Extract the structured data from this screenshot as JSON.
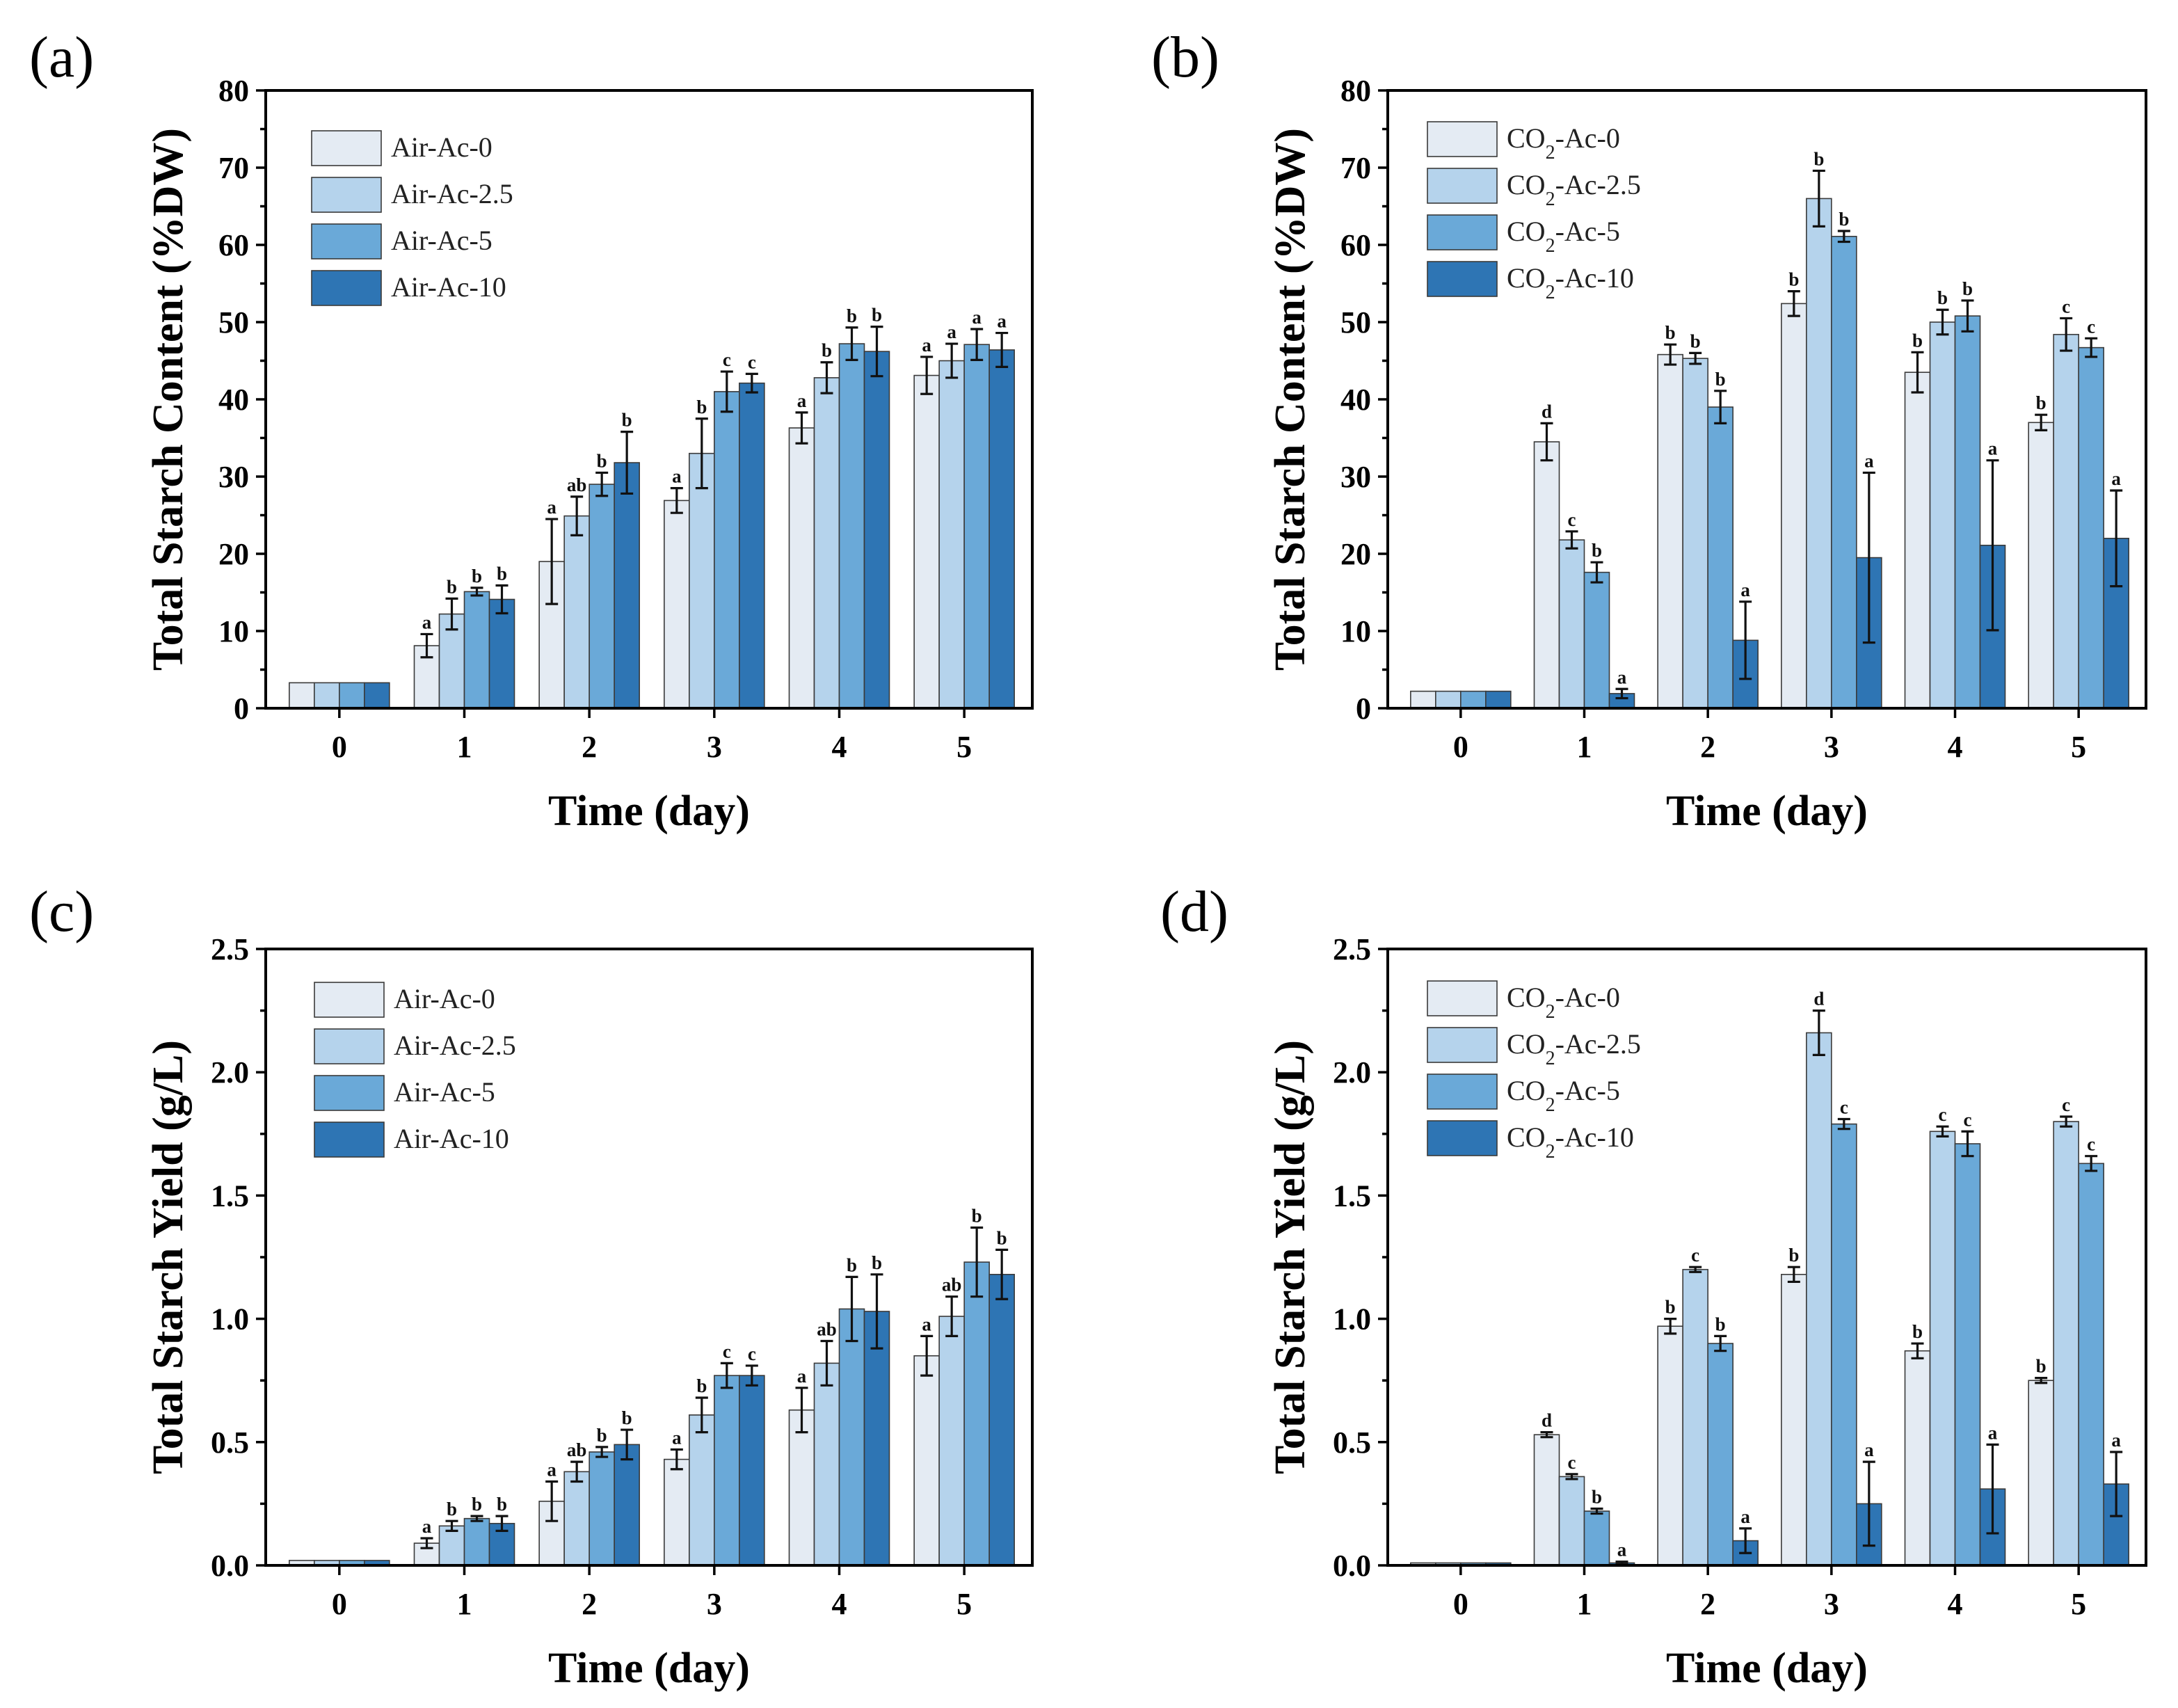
{
  "colors": [
    "#e4ebf3",
    "#b5d3ec",
    "#6aa9d8",
    "#2e75b4"
  ],
  "chart_data": [
    {
      "type": "bar",
      "panel_label": "(a)",
      "xlabel": "Time (day)",
      "ylabel": "Total Starch Content (%DW)",
      "categories": [
        "0",
        "1",
        "2",
        "3",
        "4",
        "5"
      ],
      "ylim": [
        0,
        80
      ],
      "yticks": [
        "0",
        "10",
        "20",
        "30",
        "40",
        "50",
        "60",
        "70",
        "80"
      ],
      "legend_position": "top-left",
      "series": [
        {
          "name": "Air-Ac-0",
          "values": [
            3.3,
            8.1,
            19.0,
            26.9,
            36.3,
            43.1
          ],
          "errors": [
            0,
            1.5,
            5.5,
            1.6,
            2.0,
            2.4
          ],
          "labels": [
            "",
            "a",
            "a",
            "a",
            "a",
            "a"
          ]
        },
        {
          "name": "Air-Ac-2.5",
          "values": [
            3.3,
            12.2,
            24.9,
            33.0,
            42.8,
            45.0
          ],
          "errors": [
            0,
            2.0,
            2.5,
            4.5,
            2.0,
            2.2
          ],
          "labels": [
            "",
            "b",
            "ab",
            "b",
            "b",
            "a"
          ]
        },
        {
          "name": "Air-Ac-5",
          "values": [
            3.3,
            15.1,
            29.0,
            41.0,
            47.2,
            47.1
          ],
          "errors": [
            0,
            0.5,
            1.5,
            2.6,
            2.1,
            2.0
          ],
          "labels": [
            "",
            "b",
            "b",
            "c",
            "b",
            "a"
          ]
        },
        {
          "name": "Air-Ac-10",
          "values": [
            3.3,
            14.1,
            31.8,
            42.1,
            46.2,
            46.4
          ],
          "errors": [
            0,
            1.8,
            4.0,
            1.2,
            3.2,
            2.2
          ],
          "labels": [
            "",
            "b",
            "b",
            "c",
            "b",
            "a"
          ]
        }
      ]
    },
    {
      "type": "bar",
      "panel_label": "(b)",
      "xlabel": "Time (day)",
      "ylabel": "Total Starch Content (%DW)",
      "categories": [
        "0",
        "1",
        "2",
        "3",
        "4",
        "5"
      ],
      "ylim": [
        0,
        80
      ],
      "yticks": [
        "0",
        "10",
        "20",
        "30",
        "40",
        "50",
        "60",
        "70",
        "80"
      ],
      "legend_position": "top-left",
      "series": [
        {
          "name": "CO2-Ac-0",
          "values": [
            2.2,
            34.5,
            45.8,
            52.4,
            43.5,
            37.0
          ],
          "errors": [
            0,
            2.4,
            1.3,
            1.6,
            2.6,
            1.0
          ],
          "labels": [
            "",
            "d",
            "b",
            "b",
            "b",
            "b"
          ]
        },
        {
          "name": "CO2-Ac-2.5",
          "values": [
            2.2,
            21.8,
            45.3,
            66.0,
            50.0,
            48.4
          ],
          "errors": [
            0,
            1.1,
            0.7,
            3.6,
            1.6,
            2.1
          ],
          "labels": [
            "",
            "c",
            "b",
            "b",
            "b",
            "c"
          ]
        },
        {
          "name": "CO2-Ac-5",
          "values": [
            2.2,
            17.6,
            39.0,
            61.1,
            50.8,
            46.7
          ],
          "errors": [
            0,
            1.3,
            2.1,
            0.7,
            2.0,
            1.2
          ],
          "labels": [
            "",
            "b",
            "b",
            "b",
            "b",
            "c"
          ]
        },
        {
          "name": "CO2-Ac-10",
          "values": [
            2.2,
            1.9,
            8.8,
            19.5,
            21.1,
            22.0
          ],
          "errors": [
            0,
            0.6,
            5.0,
            11.0,
            11.0,
            6.2
          ],
          "labels": [
            "",
            "a",
            "a",
            "a",
            "a",
            "a"
          ]
        }
      ]
    },
    {
      "type": "bar",
      "panel_label": "(c)",
      "xlabel": "Time (day)",
      "ylabel": "Total Starch Yield (g/L)",
      "categories": [
        "0",
        "1",
        "2",
        "3",
        "4",
        "5"
      ],
      "ylim": [
        0,
        2.5
      ],
      "yticks": [
        "0.0",
        "0.5",
        "1.0",
        "1.5",
        "2.0",
        "2.5"
      ],
      "legend_position": "top-left",
      "series": [
        {
          "name": "Air-Ac-0",
          "values": [
            0.02,
            0.09,
            0.26,
            0.43,
            0.63,
            0.85
          ],
          "errors": [
            0,
            0.02,
            0.08,
            0.04,
            0.09,
            0.08
          ],
          "labels": [
            "",
            "a",
            "a",
            "a",
            "a",
            "a"
          ]
        },
        {
          "name": "Air-Ac-2.5",
          "values": [
            0.02,
            0.16,
            0.38,
            0.61,
            0.82,
            1.01
          ],
          "errors": [
            0,
            0.02,
            0.04,
            0.07,
            0.09,
            0.08
          ],
          "labels": [
            "",
            "b",
            "ab",
            "b",
            "ab",
            "ab"
          ]
        },
        {
          "name": "Air-Ac-5",
          "values": [
            0.02,
            0.19,
            0.46,
            0.77,
            1.04,
            1.23
          ],
          "errors": [
            0,
            0.01,
            0.02,
            0.05,
            0.13,
            0.14
          ],
          "labels": [
            "",
            "b",
            "b",
            "c",
            "b",
            "b"
          ]
        },
        {
          "name": "Air-Ac-10",
          "values": [
            0.02,
            0.17,
            0.49,
            0.77,
            1.03,
            1.18
          ],
          "errors": [
            0,
            0.03,
            0.06,
            0.04,
            0.15,
            0.1
          ],
          "labels": [
            "",
            "b",
            "b",
            "c",
            "b",
            "b"
          ]
        }
      ]
    },
    {
      "type": "bar",
      "panel_label": "(d)",
      "xlabel": "Time (day)",
      "ylabel": "Total Starch Yield (g/L)",
      "categories": [
        "0",
        "1",
        "2",
        "3",
        "4",
        "5"
      ],
      "ylim": [
        0,
        2.5
      ],
      "yticks": [
        "0.0",
        "0.5",
        "1.0",
        "1.5",
        "2.0",
        "2.5"
      ],
      "legend_position": "top-left",
      "series": [
        {
          "name": "CO2-Ac-0",
          "values": [
            0.01,
            0.53,
            0.97,
            1.18,
            0.87,
            0.75
          ],
          "errors": [
            0,
            0.01,
            0.03,
            0.03,
            0.03,
            0.01
          ],
          "labels": [
            "",
            "d",
            "b",
            "b",
            "b",
            "b"
          ]
        },
        {
          "name": "CO2-Ac-2.5",
          "values": [
            0.01,
            0.36,
            1.2,
            2.16,
            1.76,
            1.8
          ],
          "errors": [
            0,
            0.01,
            0.01,
            0.09,
            0.02,
            0.02
          ],
          "labels": [
            "",
            "c",
            "c",
            "d",
            "c",
            "c"
          ]
        },
        {
          "name": "CO2-Ac-5",
          "values": [
            0.01,
            0.22,
            0.9,
            1.79,
            1.71,
            1.63
          ],
          "errors": [
            0,
            0.01,
            0.03,
            0.02,
            0.05,
            0.03
          ],
          "labels": [
            "",
            "b",
            "b",
            "c",
            "c",
            "c"
          ]
        },
        {
          "name": "CO2-Ac-10",
          "values": [
            0.01,
            0.01,
            0.1,
            0.25,
            0.31,
            0.33
          ],
          "errors": [
            0,
            0.005,
            0.05,
            0.17,
            0.18,
            0.13
          ],
          "labels": [
            "",
            "a",
            "a",
            "a",
            "a",
            "a"
          ]
        }
      ]
    }
  ]
}
